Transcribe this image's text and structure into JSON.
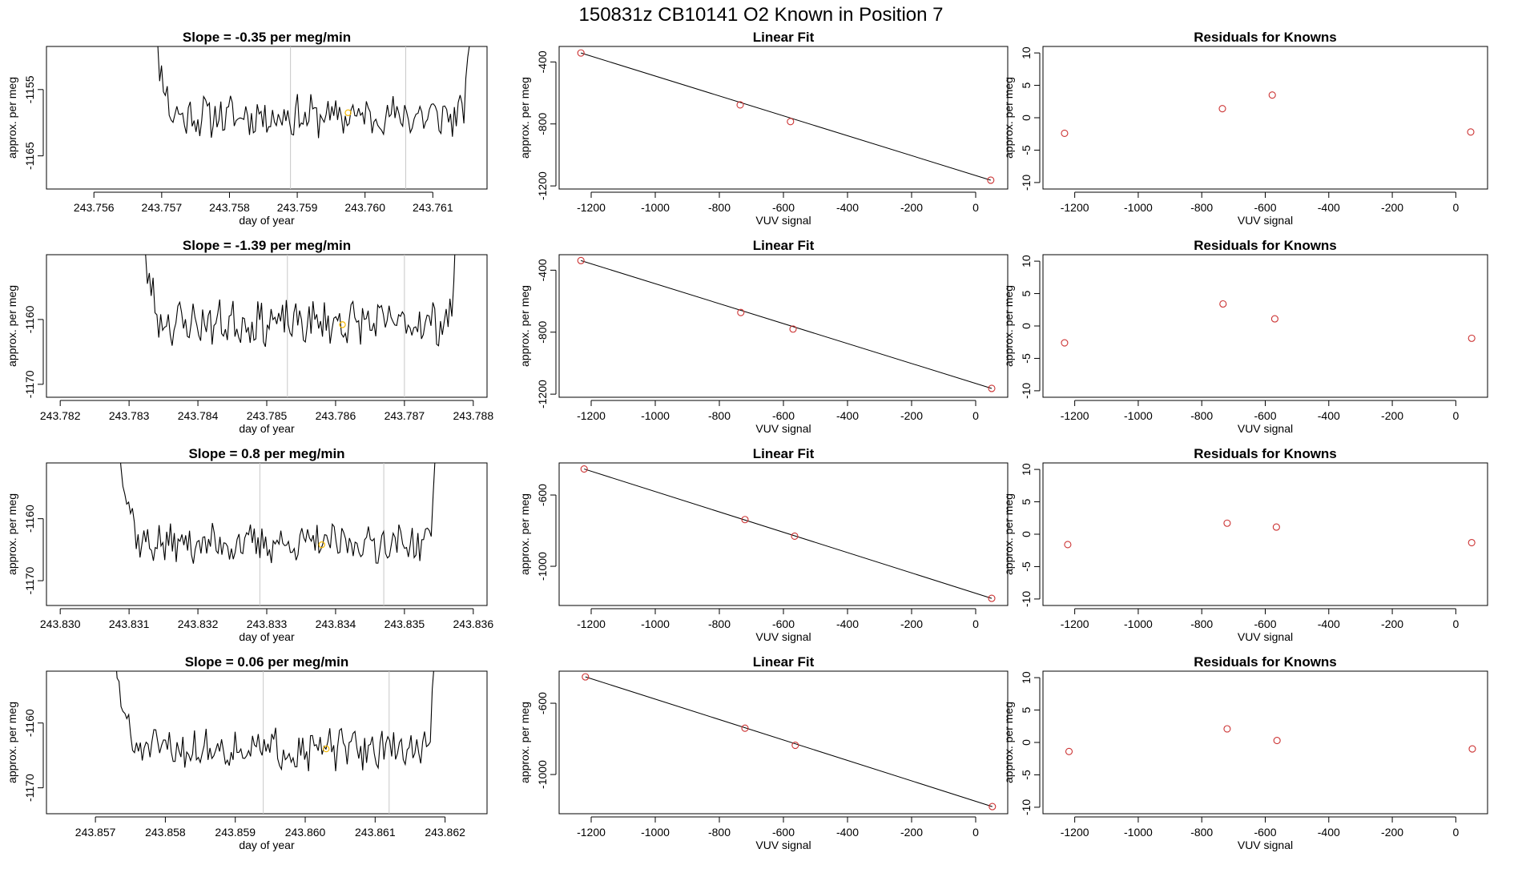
{
  "figure": {
    "title": "150831z      CB10141    O2 Known in Position  7",
    "colors": {
      "trace": "#000000",
      "marker": "#f5b800",
      "fit_points": "#cc3333",
      "vline": "#c8c8c8",
      "frame": "#000000"
    }
  },
  "chart_data": [
    {
      "type": "line",
      "row": 0,
      "col": 0,
      "title": "Slope =  -0.35  per meg/min",
      "xlabel": "day of year",
      "ylabel": "approx. per meg",
      "xlim": [
        243.7553,
        243.7618
      ],
      "ylim": [
        -1170.0,
        -1148.5
      ],
      "xticks": [
        243.756,
        243.757,
        243.758,
        243.759,
        243.76,
        243.761
      ],
      "xtick_labels": [
        "243.756",
        "243.757",
        "243.758",
        "243.759",
        "243.760",
        "243.761"
      ],
      "yticks": [
        -1155,
        -1165
      ],
      "ytick_labels": [
        "-1155",
        "-1165"
      ],
      "vlines": [
        243.7589,
        243.7606
      ],
      "trace_x_range": [
        243.7568,
        243.7616
      ],
      "trace_baseline": -1159.0,
      "trace_noise": 2.6,
      "trace_seed": 11,
      "marker": {
        "x": 243.75975,
        "y": -1158.5
      }
    },
    {
      "type": "scatter",
      "row": 0,
      "col": 1,
      "title": "Linear Fit",
      "xlabel": "VUV signal",
      "ylabel": "approx. per meg",
      "xlim": [
        -1300,
        100
      ],
      "ylim": [
        -1220,
        -300
      ],
      "xticks": [
        -1200,
        -1000,
        -800,
        -600,
        -400,
        -200,
        0
      ],
      "xtick_labels": [
        "-1200",
        "-1000",
        "-800",
        "-600",
        "-400",
        "-200",
        "0"
      ],
      "yticks": [
        -400,
        -800,
        -1200
      ],
      "ytick_labels": [
        "-400",
        "-800",
        "-1200"
      ],
      "points": [
        [
          -1232,
          -342
        ],
        [
          -735,
          -677
        ],
        [
          -578,
          -785
        ],
        [
          47,
          -1163
        ]
      ],
      "fit_line": [
        [
          -1232,
          -342
        ],
        [
          47,
          -1163
        ]
      ]
    },
    {
      "type": "scatter",
      "row": 0,
      "col": 2,
      "title": "Residuals for Knowns",
      "xlabel": "VUV signal",
      "ylabel": "approx. per meg",
      "xlim": [
        -1300,
        100
      ],
      "ylim": [
        -11,
        11
      ],
      "xticks": [
        -1200,
        -1000,
        -800,
        -600,
        -400,
        -200,
        0
      ],
      "xtick_labels": [
        "-1200",
        "-1000",
        "-800",
        "-600",
        "-400",
        "-200",
        "0"
      ],
      "yticks": [
        10,
        5,
        0,
        -5,
        -10
      ],
      "ytick_labels": [
        "10",
        "5",
        "0",
        "-5",
        "-10"
      ],
      "points": [
        [
          -1232,
          -2.4
        ],
        [
          -735,
          1.4
        ],
        [
          -578,
          3.5
        ],
        [
          47,
          -2.2
        ]
      ]
    },
    {
      "type": "line",
      "row": 1,
      "col": 0,
      "title": "Slope =  -1.39  per meg/min",
      "xlabel": "day of year",
      "ylabel": "approx. per meg",
      "xlim": [
        243.7818,
        243.7882
      ],
      "ylim": [
        -1172.0,
        -1150.0
      ],
      "xticks": [
        243.782,
        243.783,
        243.784,
        243.785,
        243.786,
        243.787,
        243.788
      ],
      "xtick_labels": [
        "243.782",
        "243.783",
        "243.784",
        "243.785",
        "243.786",
        "243.787",
        "243.788"
      ],
      "yticks": [
        -1160,
        -1170
      ],
      "ytick_labels": [
        "-1160",
        "-1170"
      ],
      "vlines": [
        243.7853,
        243.787
      ],
      "trace_x_range": [
        243.7831,
        243.7878
      ],
      "trace_baseline": -1160.5,
      "trace_noise": 2.8,
      "trace_seed": 23,
      "marker": {
        "x": 243.7861,
        "y": -1160.8
      }
    },
    {
      "type": "scatter",
      "row": 1,
      "col": 1,
      "title": "Linear Fit",
      "xlabel": "VUV signal",
      "ylabel": "approx. per meg",
      "xlim": [
        -1300,
        100
      ],
      "ylim": [
        -1220,
        -300
      ],
      "xticks": [
        -1200,
        -1000,
        -800,
        -600,
        -400,
        -200,
        0
      ],
      "xtick_labels": [
        "-1200",
        "-1000",
        "-800",
        "-600",
        "-400",
        "-200",
        "0"
      ],
      "yticks": [
        -400,
        -800,
        -1200
      ],
      "ytick_labels": [
        "-400",
        "-800",
        "-1200"
      ],
      "points": [
        [
          -1232,
          -338
        ],
        [
          -733,
          -673
        ],
        [
          -570,
          -780
        ],
        [
          50,
          -1163
        ]
      ],
      "fit_line": [
        [
          -1232,
          -338
        ],
        [
          50,
          -1163
        ]
      ]
    },
    {
      "type": "scatter",
      "row": 1,
      "col": 2,
      "title": "Residuals for Knowns",
      "xlabel": "VUV signal",
      "ylabel": "approx. per meg",
      "xlim": [
        -1300,
        100
      ],
      "ylim": [
        -11,
        11
      ],
      "xticks": [
        -1200,
        -1000,
        -800,
        -600,
        -400,
        -200,
        0
      ],
      "xtick_labels": [
        "-1200",
        "-1000",
        "-800",
        "-600",
        "-400",
        "-200",
        "0"
      ],
      "yticks": [
        10,
        5,
        0,
        -5,
        -10
      ],
      "ytick_labels": [
        "10",
        "5",
        "0",
        "-5",
        "-10"
      ],
      "points": [
        [
          -1232,
          -2.6
        ],
        [
          -733,
          3.4
        ],
        [
          -570,
          1.1
        ],
        [
          50,
          -1.9
        ]
      ]
    },
    {
      "type": "line",
      "row": 2,
      "col": 0,
      "title": "Slope =  0.8  per meg/min",
      "xlabel": "day of year",
      "ylabel": "approx. per meg",
      "xlim": [
        243.8298,
        243.8362
      ],
      "ylim": [
        -1174.0,
        -1151.0
      ],
      "xticks": [
        243.83,
        243.831,
        243.832,
        243.833,
        243.834,
        243.835,
        243.836
      ],
      "xtick_labels": [
        "243.830",
        "243.831",
        "243.832",
        "243.833",
        "243.834",
        "243.835",
        "243.836"
      ],
      "yticks": [
        -1160,
        -1170
      ],
      "ytick_labels": [
        "-1160",
        "-1170"
      ],
      "vlines": [
        243.8329,
        243.8347
      ],
      "trace_x_range": [
        243.8308,
        243.8355
      ],
      "trace_baseline": -1164.0,
      "trace_noise": 2.6,
      "trace_seed": 37,
      "marker": {
        "x": 243.8338,
        "y": -1164.2
      }
    },
    {
      "type": "scatter",
      "row": 2,
      "col": 1,
      "title": "Linear Fit",
      "xlabel": "VUV signal",
      "ylabel": "approx. per meg",
      "xlim": [
        -1300,
        100
      ],
      "ylim": [
        -1220,
        -420
      ],
      "xticks": [
        -1200,
        -1000,
        -800,
        -600,
        -400,
        -200,
        0
      ],
      "xtick_labels": [
        "-1200",
        "-1000",
        "-800",
        "-600",
        "-400",
        "-200",
        "0"
      ],
      "yticks": [
        -600,
        -1000
      ],
      "ytick_labels": [
        "-600",
        "-1000"
      ],
      "points": [
        [
          -1222,
          -454
        ],
        [
          -720,
          -738
        ],
        [
          -565,
          -831
        ],
        [
          50,
          -1180
        ]
      ],
      "fit_line": [
        [
          -1222,
          -454
        ],
        [
          50,
          -1180
        ]
      ]
    },
    {
      "type": "scatter",
      "row": 2,
      "col": 2,
      "title": "Residuals for Knowns",
      "xlabel": "VUV signal",
      "ylabel": "approx. per meg",
      "xlim": [
        -1300,
        100
      ],
      "ylim": [
        -11,
        11
      ],
      "xticks": [
        -1200,
        -1000,
        -800,
        -600,
        -400,
        -200,
        0
      ],
      "xtick_labels": [
        "-1200",
        "-1000",
        "-800",
        "-600",
        "-400",
        "-200",
        "0"
      ],
      "yticks": [
        10,
        5,
        0,
        -5,
        -10
      ],
      "ytick_labels": [
        "10",
        "5",
        "0",
        "-5",
        "-10"
      ],
      "points": [
        [
          -1222,
          -1.6
        ],
        [
          -720,
          1.7
        ],
        [
          -565,
          1.1
        ],
        [
          50,
          -1.3
        ]
      ]
    },
    {
      "type": "line",
      "row": 3,
      "col": 0,
      "title": "Slope =  0.06  per meg/min",
      "xlabel": "day of year",
      "ylabel": "approx. per meg",
      "xlim": [
        243.8563,
        243.8626
      ],
      "ylim": [
        -1174.0,
        -1152.0
      ],
      "xticks": [
        243.857,
        243.858,
        243.859,
        243.86,
        243.861,
        243.862
      ],
      "xtick_labels": [
        "243.857",
        "243.858",
        "243.859",
        "243.860",
        "243.861",
        "243.862"
      ],
      "yticks": [
        -1160,
        -1170
      ],
      "ytick_labels": [
        "-1160",
        "-1170"
      ],
      "vlines": [
        243.8594,
        243.8612
      ],
      "trace_x_range": [
        243.8572,
        243.8619
      ],
      "trace_baseline": -1164.0,
      "trace_noise": 2.6,
      "trace_seed": 51,
      "marker": {
        "x": 243.8603,
        "y": -1164.0
      }
    },
    {
      "type": "scatter",
      "row": 3,
      "col": 1,
      "title": "Linear Fit",
      "xlabel": "VUV signal",
      "ylabel": "approx. per meg",
      "xlim": [
        -1300,
        100
      ],
      "ylim": [
        -1220,
        -420
      ],
      "xticks": [
        -1200,
        -1000,
        -800,
        -600,
        -400,
        -200,
        0
      ],
      "xtick_labels": [
        "-1200",
        "-1000",
        "-800",
        "-600",
        "-400",
        "-200",
        "0"
      ],
      "yticks": [
        -600,
        -1000
      ],
      "ytick_labels": [
        "-600",
        "-1000"
      ],
      "points": [
        [
          -1218,
          -452
        ],
        [
          -720,
          -740
        ],
        [
          -563,
          -836
        ],
        [
          52,
          -1180
        ]
      ],
      "fit_line": [
        [
          -1218,
          -452
        ],
        [
          52,
          -1180
        ]
      ]
    },
    {
      "type": "scatter",
      "row": 3,
      "col": 2,
      "title": "Residuals for Knowns",
      "xlabel": "VUV signal",
      "ylabel": "approx. per meg",
      "xlim": [
        -1300,
        100
      ],
      "ylim": [
        -11,
        11
      ],
      "xticks": [
        -1200,
        -1000,
        -800,
        -600,
        -400,
        -200,
        0
      ],
      "xtick_labels": [
        "-1200",
        "-1000",
        "-800",
        "-600",
        "-400",
        "-200",
        "0"
      ],
      "yticks": [
        10,
        5,
        0,
        -5,
        -10
      ],
      "ytick_labels": [
        "10",
        "5",
        "0",
        "-5",
        "-10"
      ],
      "points": [
        [
          -1218,
          -1.4
        ],
        [
          -720,
          2.1
        ],
        [
          -563,
          0.3
        ],
        [
          52,
          -1.0
        ]
      ]
    }
  ]
}
